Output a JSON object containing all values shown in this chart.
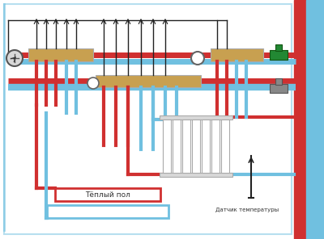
{
  "bg_color": "#ffffff",
  "red_pipe": "#d03030",
  "blue_pipe": "#70c0e0",
  "manifold_color": "#c8a050",
  "black": "#222222",
  "gray_light": "#d8d8d8",
  "gray_med": "#aaaaaa",
  "green_valve": "#228833",
  "label_topliy_pol": "Тёплый пол",
  "label_datchik": "Датчик температуры",
  "pipe_lw_main": 5,
  "pipe_lw_branch": 3,
  "pipe_lw_small": 2
}
